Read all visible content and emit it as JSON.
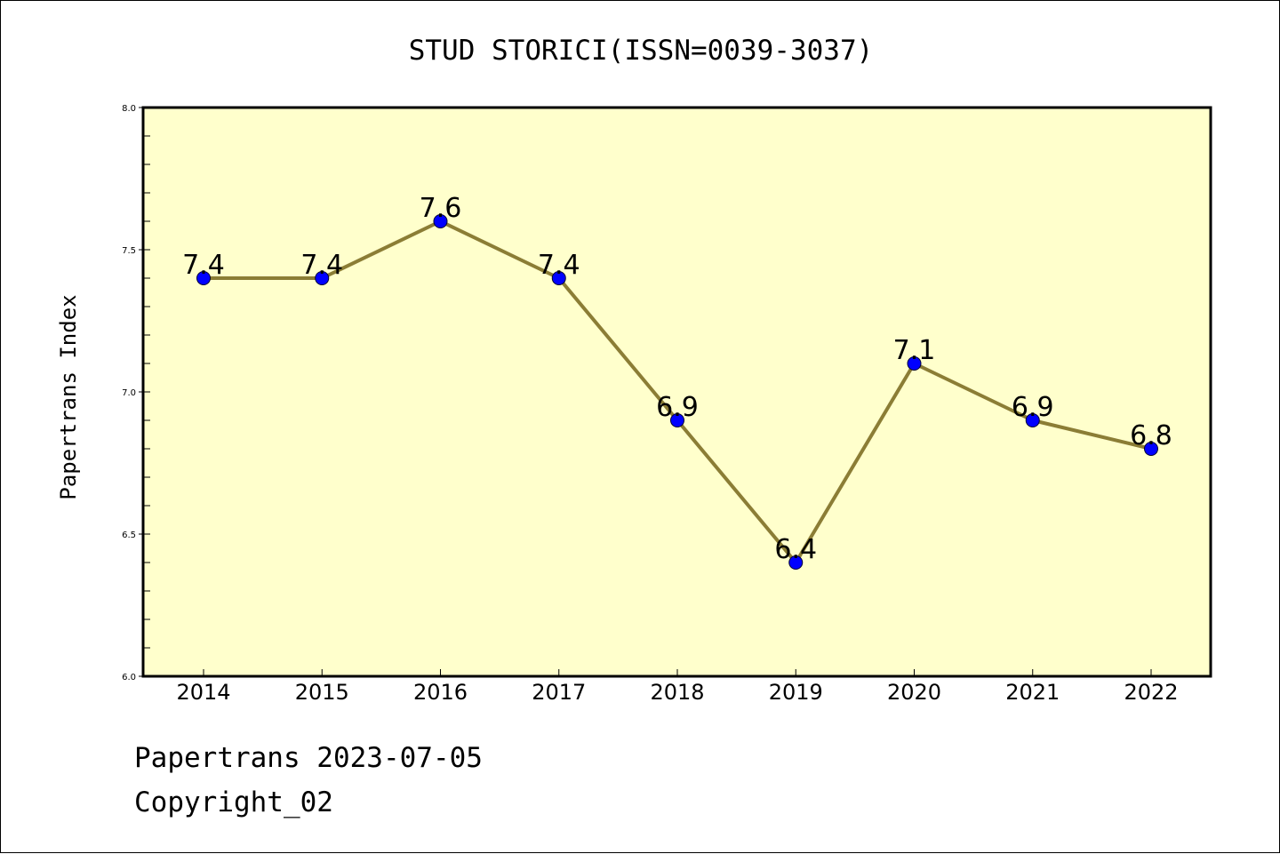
{
  "colors": {
    "plot_background": "#FFFFCC",
    "line": "#8B7D35",
    "marker": "#0000FF",
    "axes": "#000000"
  },
  "chart_data": {
    "type": "line",
    "title": "STUD STORICI(ISSN=0039-3037)",
    "xlabel": "",
    "ylabel": "Papertrans Index",
    "categories": [
      "2014",
      "2015",
      "2016",
      "2017",
      "2018",
      "2019",
      "2020",
      "2021",
      "2022"
    ],
    "series": [
      {
        "values": [
          7.4,
          7.4,
          7.6,
          7.4,
          6.9,
          6.4,
          7.1,
          6.9,
          6.8
        ],
        "data_labels": [
          "7.4",
          "7.4",
          "7.6",
          "7.4",
          "6.9",
          "6.4",
          "7.1",
          "6.9",
          "6.8"
        ]
      }
    ],
    "ylim": [
      6.0,
      8.0
    ],
    "yticks": [
      "6.0",
      "6.5",
      "7.0",
      "7.5",
      "8.0"
    ],
    "grid": false,
    "legend": "none"
  },
  "footer": {
    "stamp": "Papertrans 2023-07-05",
    "copyright": "Copyright_02"
  }
}
